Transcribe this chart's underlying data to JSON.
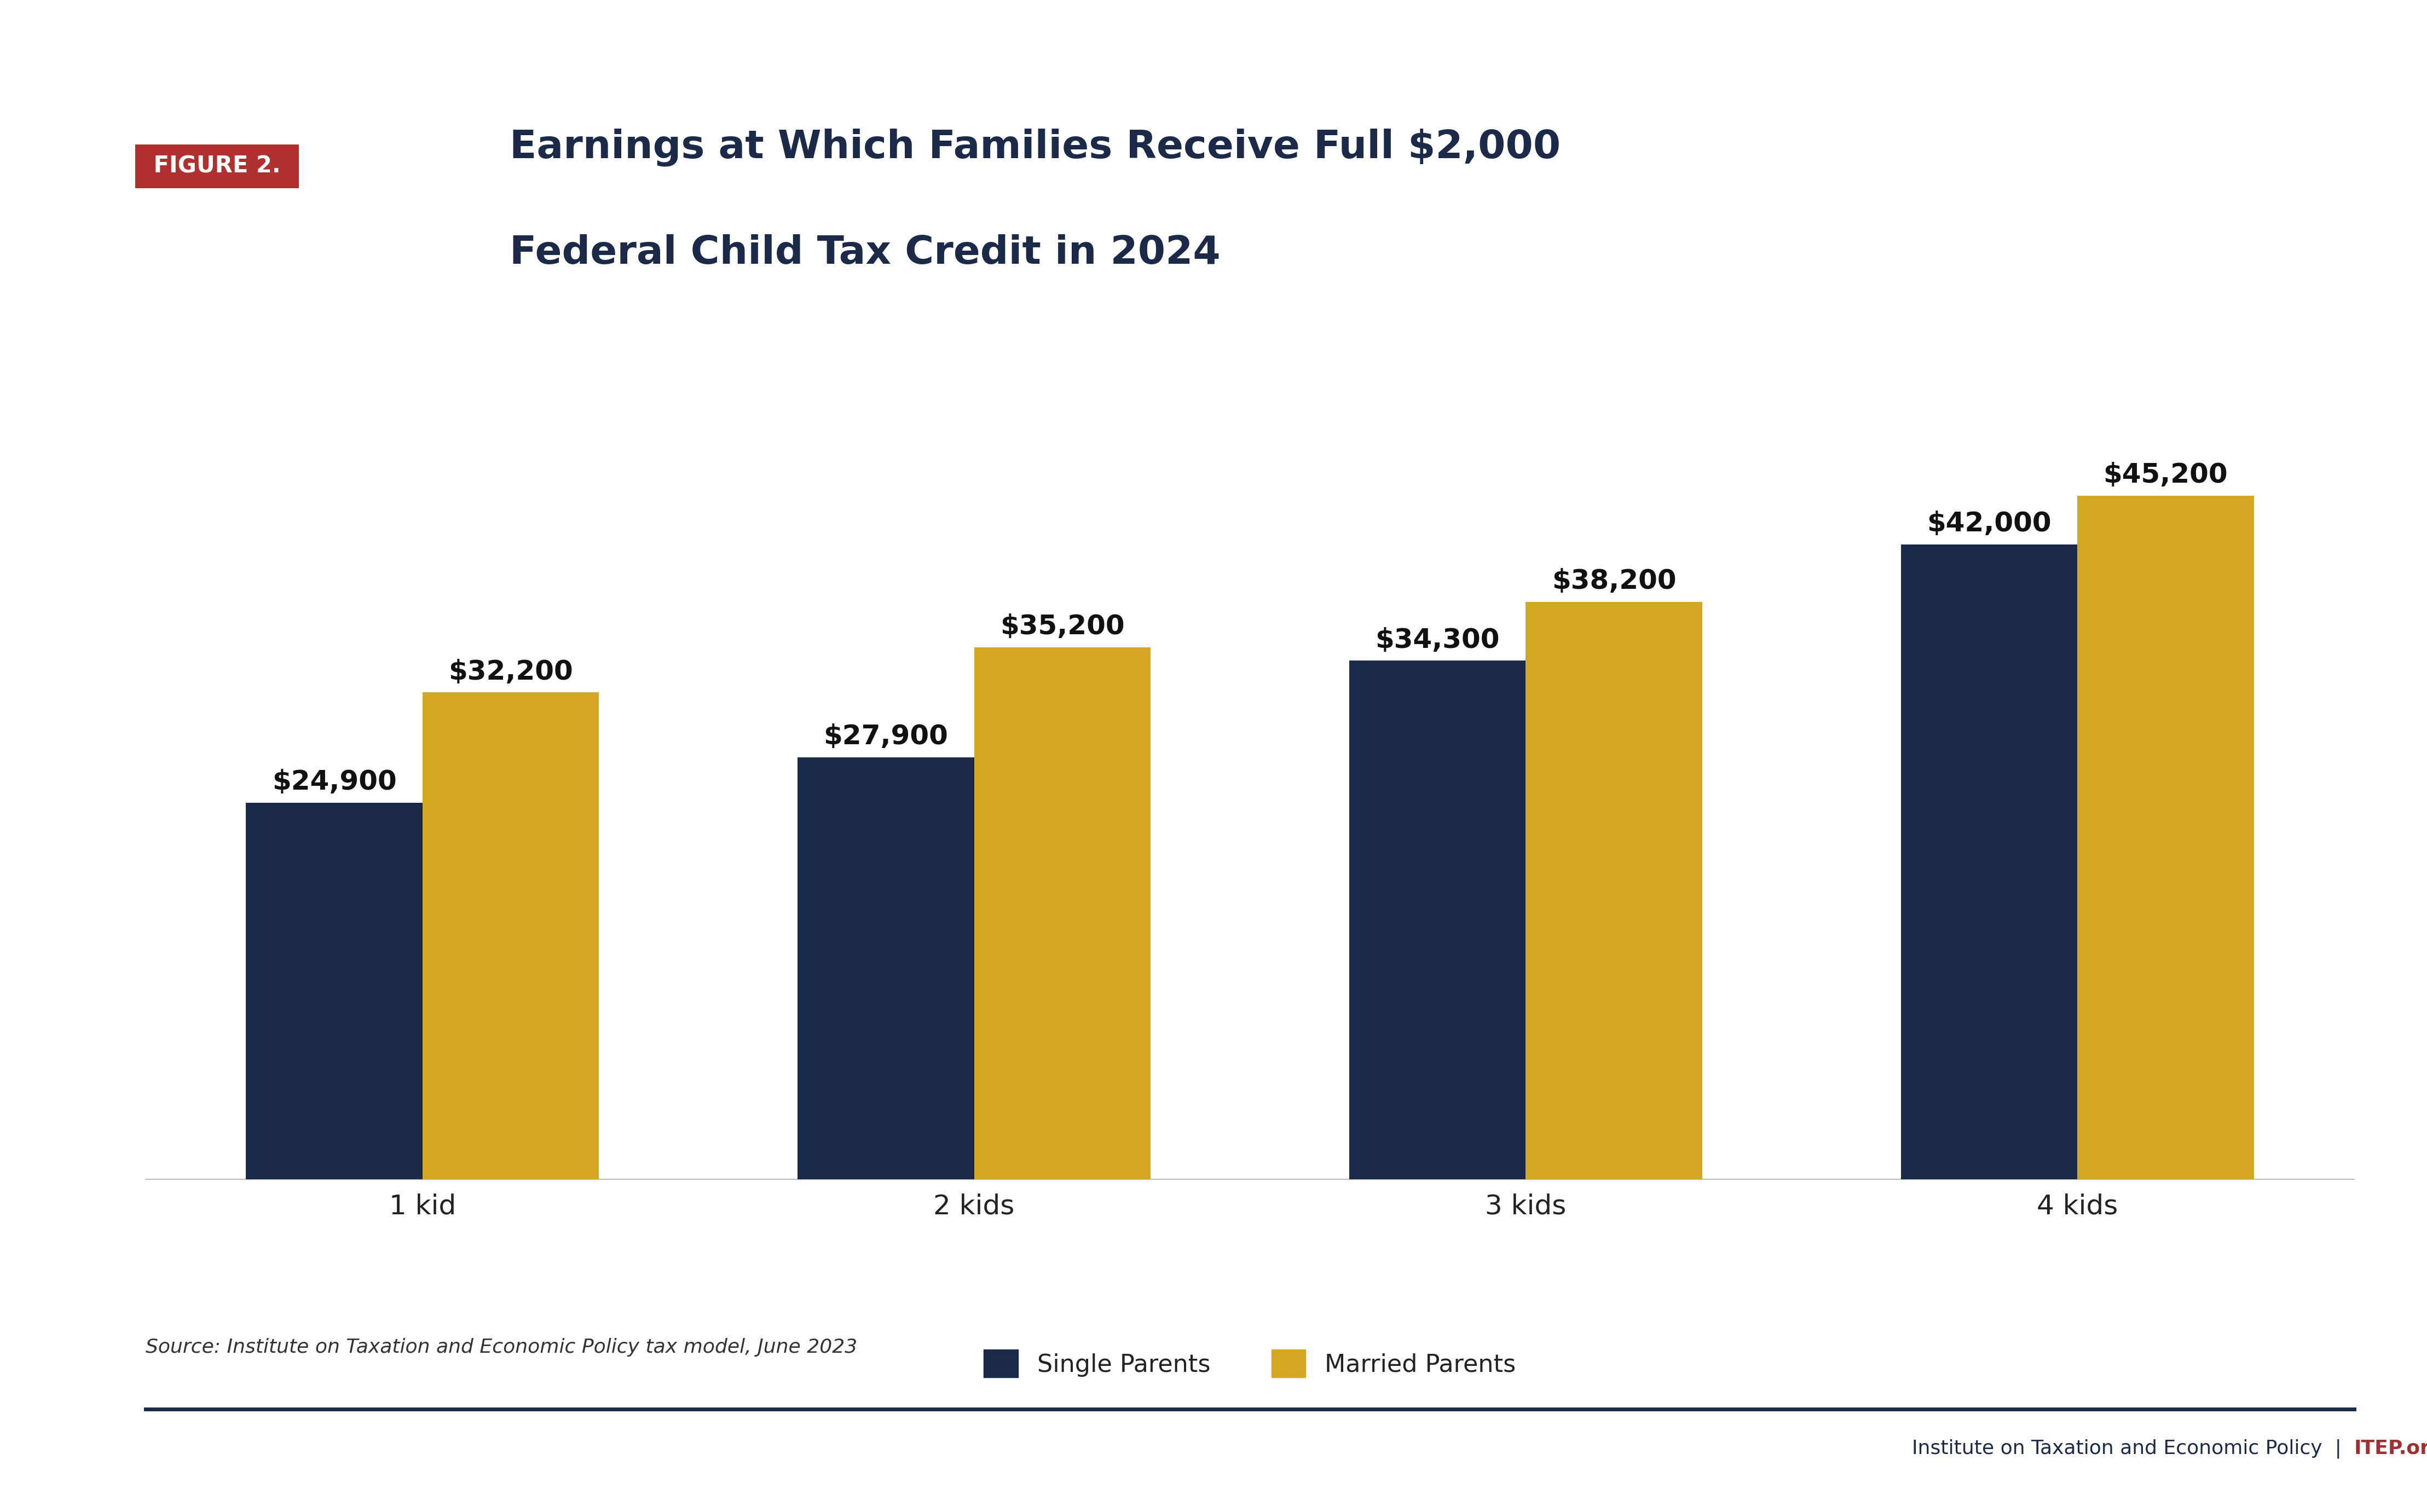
{
  "title_line1": "Earnings at Which Families Receive Full $2,000",
  "title_line2": "Federal Child Tax Credit in 2024",
  "figure_label": "FIGURE 2.",
  "categories": [
    "1 kid",
    "2 kids",
    "3 kids",
    "4 kids"
  ],
  "single_parents": [
    24900,
    27900,
    34300,
    42000
  ],
  "married_parents": [
    32200,
    35200,
    38200,
    45200
  ],
  "single_color": "#1b2a49",
  "married_color": "#d4a820",
  "bar_width": 0.32,
  "ylim": [
    0,
    52000
  ],
  "figure_label_bg": "#b03030",
  "figure_label_text": "#ffffff",
  "title_color": "#1b2a49",
  "source_text": "Source: Institute on Taxation and Economic Policy tax model, June 2023",
  "footer_itep_color": "#a03030",
  "footer_main_color": "#1b2a49",
  "background_color": "#ffffff",
  "legend_single": "Single Parents",
  "legend_married": "Married Parents",
  "value_fontsize": 36,
  "label_fontsize": 36,
  "title_fontsize": 52,
  "fig_label_fontsize": 30,
  "legend_fontsize": 32,
  "source_fontsize": 26
}
